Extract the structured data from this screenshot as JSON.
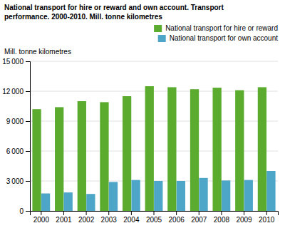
{
  "chart_data": {
    "type": "bar",
    "title": "National transport for hire or reward and own account. Transport",
    "subtitle": "performance. 2000-2010. Mill. tonne kilometres",
    "y_label": "Mill. tonne kilometres",
    "categories": [
      "2000",
      "2001",
      "2002",
      "2003",
      "2004",
      "2005",
      "2006",
      "2007",
      "2008",
      "2009",
      "2010"
    ],
    "series": [
      {
        "name": "National transport for hire or reward",
        "color": "#5aab2e",
        "values": [
          10200,
          10400,
          11000,
          10900,
          11500,
          12500,
          12400,
          12200,
          12350,
          12100,
          12400
        ]
      },
      {
        "name": "National transport for own account",
        "color": "#4da6c8",
        "values": [
          1750,
          1850,
          1700,
          2900,
          3100,
          3000,
          3000,
          3300,
          3050,
          3100,
          4000
        ]
      }
    ],
    "ylim": [
      0,
      15000
    ],
    "yticks": [
      0,
      {
        "value": 3000,
        "label": "3 000"
      },
      {
        "value": 6000,
        "label": "6 000"
      },
      {
        "value": 9000,
        "label": "9 000"
      },
      {
        "value": 12000,
        "label": "12 000"
      },
      {
        "value": 15000,
        "label": "15 000"
      }
    ],
    "grid": true,
    "legend": "upper right"
  }
}
